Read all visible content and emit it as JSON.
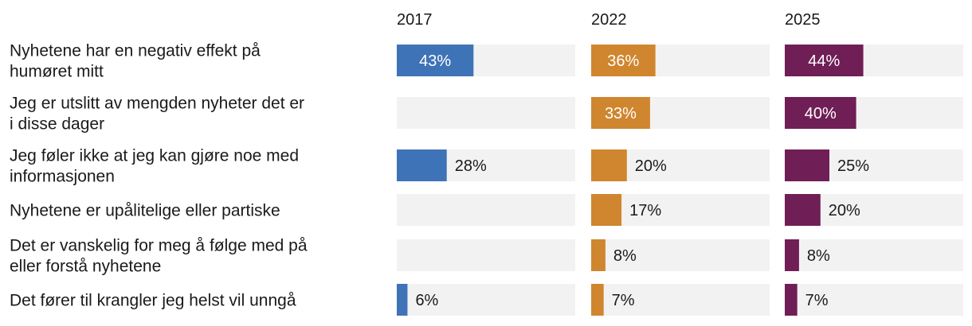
{
  "chart_data": {
    "type": "bar",
    "orientation": "horizontal",
    "layout": "small-multiples",
    "categories": [
      [
        "Nyhetene har en negativ effekt på",
        "humøret mitt"
      ],
      [
        "Jeg er utslitt av mengden nyheter det er",
        "i disse dager"
      ],
      [
        "Jeg føler ikke at jeg kan gjøre noe med",
        "informasjonen"
      ],
      [
        "Nyhetene er upålitelige eller partiske"
      ],
      [
        "Det er vanskelig for meg å følge med på",
        "eller forstå nyhetene"
      ],
      [
        "Det fører til krangler jeg helst vil unngå"
      ]
    ],
    "series": [
      {
        "name": "2017",
        "color": "#3f73b7",
        "values": [
          43,
          null,
          28,
          null,
          null,
          6
        ],
        "labels": [
          "43%",
          "",
          "28%",
          "",
          "",
          "6%"
        ]
      },
      {
        "name": "2022",
        "color": "#d0862e",
        "values": [
          36,
          33,
          20,
          17,
          8,
          7
        ],
        "labels": [
          "36%",
          "33%",
          "20%",
          "17%",
          "8%",
          "7%"
        ]
      },
      {
        "name": "2025",
        "color": "#701e56",
        "values": [
          44,
          40,
          25,
          20,
          8,
          7
        ],
        "labels": [
          "44%",
          "40%",
          "25%",
          "20%",
          "8%",
          "7%"
        ]
      }
    ],
    "xlim": [
      0,
      100
    ],
    "track_color": "#f2f2f2",
    "label_inside_color": "#ffffff",
    "label_outside_color": "#1a1a1a",
    "grid": false,
    "legend": "none"
  }
}
